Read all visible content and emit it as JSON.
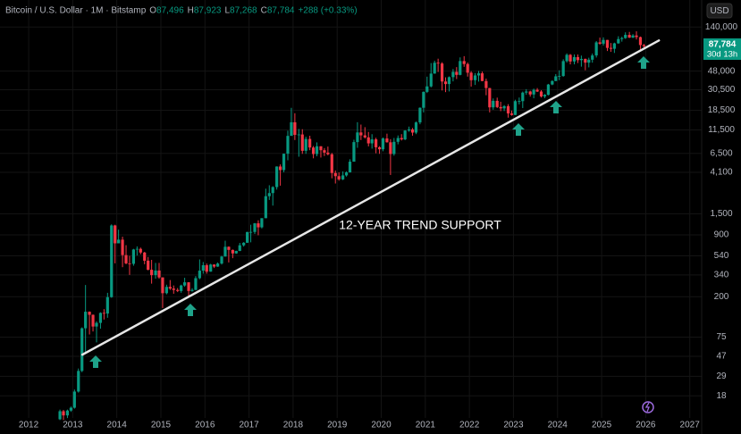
{
  "chart_data": {
    "type": "candlestick",
    "header": {
      "symbol": "Bitcoin / U.S. Dollar · 1M · Bitstamp",
      "ohlc": [
        {
          "key": "O",
          "value": "87,496"
        },
        {
          "key": "H",
          "value": "87,923"
        },
        {
          "key": "L",
          "value": "87,268"
        },
        {
          "key": "C",
          "value": "87,784"
        }
      ],
      "change": "+288 (+0.33%)"
    },
    "currency": "USD",
    "price_label": "87,784",
    "countdown": "30d 13h",
    "annotation": "12-YEAR TREND SUPPORT",
    "trendline": {
      "x": [
        2013.22,
        2026.3
      ],
      "y": [
        49,
        101000
      ],
      "color": "#e6e6e6"
    },
    "up_color": "#089981",
    "down_color": "#f23645",
    "log_scale": true,
    "grid": true,
    "xlim": [
      2011.35,
      2027.27
    ],
    "ylim": [
      12,
      270000
    ],
    "xticks": [
      2012,
      2013,
      2014,
      2015,
      2016,
      2017,
      2018,
      2019,
      2020,
      2021,
      2022,
      2023,
      2024,
      2025,
      2026,
      2027
    ],
    "yticks": [
      {
        "value": 140000,
        "label": "140,000"
      },
      {
        "value": 48000,
        "label": "48,000"
      },
      {
        "value": 30500,
        "label": "30,500"
      },
      {
        "value": 18500,
        "label": "18,500"
      },
      {
        "value": 11500,
        "label": "11,500"
      },
      {
        "value": 6500,
        "label": "6,500"
      },
      {
        "value": 4100,
        "label": "4,100"
      },
      {
        "value": 1500,
        "label": "1,500"
      },
      900,
      540,
      340,
      200,
      75,
      47,
      29,
      18
    ],
    "x": [
      2012.71,
      2012.79,
      2012.88,
      2012.96,
      2013.04,
      2013.13,
      2013.21,
      2013.29,
      2013.38,
      2013.46,
      2013.54,
      2013.63,
      2013.71,
      2013.79,
      2013.88,
      2013.96,
      2014.04,
      2014.13,
      2014.21,
      2014.29,
      2014.38,
      2014.46,
      2014.54,
      2014.63,
      2014.71,
      2014.79,
      2014.88,
      2014.96,
      2015.04,
      2015.13,
      2015.21,
      2015.29,
      2015.38,
      2015.46,
      2015.54,
      2015.63,
      2015.71,
      2015.79,
      2015.88,
      2015.96,
      2016.04,
      2016.13,
      2016.21,
      2016.29,
      2016.38,
      2016.46,
      2016.54,
      2016.63,
      2016.71,
      2016.79,
      2016.88,
      2016.96,
      2017.04,
      2017.13,
      2017.21,
      2017.29,
      2017.38,
      2017.46,
      2017.54,
      2017.63,
      2017.71,
      2017.79,
      2017.88,
      2017.96,
      2018.04,
      2018.13,
      2018.21,
      2018.29,
      2018.38,
      2018.46,
      2018.54,
      2018.63,
      2018.71,
      2018.79,
      2018.88,
      2018.96,
      2019.04,
      2019.13,
      2019.21,
      2019.29,
      2019.38,
      2019.46,
      2019.54,
      2019.63,
      2019.71,
      2019.79,
      2019.88,
      2019.96,
      2020.04,
      2020.13,
      2020.21,
      2020.29,
      2020.38,
      2020.46,
      2020.54,
      2020.63,
      2020.71,
      2020.79,
      2020.88,
      2020.96,
      2021.04,
      2021.13,
      2021.21,
      2021.29,
      2021.38,
      2021.46,
      2021.54,
      2021.63,
      2021.71,
      2021.79,
      2021.88,
      2021.96,
      2022.04,
      2022.13,
      2022.21,
      2022.29,
      2022.38,
      2022.46,
      2022.54,
      2022.63,
      2022.71,
      2022.79,
      2022.88,
      2022.96,
      2023.04,
      2023.13,
      2023.21,
      2023.29,
      2023.38,
      2023.46,
      2023.54,
      2023.63,
      2023.71,
      2023.79,
      2023.88,
      2023.96,
      2024.04,
      2024.13,
      2024.21,
      2024.29,
      2024.38,
      2024.46,
      2024.54,
      2024.63,
      2024.71,
      2024.79,
      2024.88,
      2024.96,
      2025.04,
      2025.13,
      2025.21,
      2025.29,
      2025.38,
      2025.46,
      2025.54,
      2025.63,
      2025.71,
      2025.79,
      2025.88,
      2025.96
    ],
    "open": [
      10.2,
      12.4,
      11.2,
      12.6,
      13.5,
      20,
      33,
      93,
      139,
      129,
      97,
      106,
      135,
      133,
      198,
      1130,
      732,
      800,
      550,
      450,
      445,
      630,
      640,
      585,
      480,
      385,
      338,
      378,
      320,
      218,
      254,
      244,
      236,
      230,
      263,
      284,
      230,
      236,
      314,
      377,
      430,
      368,
      437,
      416,
      448,
      531,
      673,
      624,
      573,
      609,
      698,
      742,
      963,
      965,
      1190,
      1080,
      1348,
      2300,
      2480,
      2870,
      4730,
      4340,
      6450,
      9950,
      13850,
      10200,
      10300,
      6930,
      9240,
      7500,
      6400,
      7730,
      7030,
      6630,
      6370,
      4040,
      3740,
      3460,
      3810,
      4100,
      5320,
      8560,
      10820,
      10080,
      9600,
      8300,
      9150,
      7550,
      7190,
      9350,
      8520,
      6410,
      8620,
      9450,
      9140,
      11330,
      11650,
      10780,
      13800,
      19700,
      28990,
      33100,
      45200,
      58800,
      57700,
      37300,
      35040,
      41460,
      47100,
      43800,
      61300,
      57000,
      46200,
      38500,
      43200,
      45500,
      37700,
      31800,
      19900,
      23300,
      20050,
      19420,
      20490,
      17170,
      16540,
      23140,
      23150,
      28480,
      29250,
      27220,
      30470,
      29230,
      25940,
      26970,
      34660,
      37720,
      42280,
      42580,
      61200,
      71300,
      60670,
      67500,
      62700,
      64600,
      58970,
      63330,
      70220,
      96450,
      93430,
      102400,
      84350,
      82550,
      94200,
      104600,
      107100,
      115750,
      108250,
      114050,
      109600,
      90400
    ],
    "high": [
      12.9,
      12.8,
      12.9,
      13.9,
      21,
      35,
      95,
      266,
      140,
      130,
      110,
      137,
      148,
      220,
      1160,
      1150,
      1020,
      860,
      700,
      540,
      640,
      680,
      660,
      595,
      525,
      490,
      455,
      455,
      320,
      268,
      300,
      263,
      247,
      268,
      317,
      285,
      246,
      330,
      495,
      465,
      448,
      445,
      440,
      460,
      540,
      780,
      680,
      630,
      612,
      740,
      754,
      970,
      1150,
      1200,
      1280,
      1350,
      2760,
      3000,
      2930,
      4750,
      4980,
      6470,
      11300,
      19670,
      17250,
      11780,
      11700,
      9760,
      9990,
      7780,
      8500,
      7760,
      7400,
      7680,
      6580,
      4300,
      4100,
      4200,
      4200,
      5640,
      9070,
      13880,
      13100,
      12300,
      10950,
      10370,
      9510,
      7750,
      9570,
      10500,
      9190,
      9460,
      10060,
      10380,
      11440,
      12470,
      12060,
      14100,
      19900,
      29300,
      41950,
      58350,
      61800,
      64900,
      59600,
      41300,
      42200,
      50500,
      52900,
      67000,
      69000,
      59100,
      47990,
      45800,
      48200,
      47500,
      40000,
      31950,
      24700,
      25200,
      22800,
      21000,
      21500,
      18400,
      23950,
      25250,
      29190,
      30970,
      29800,
      31400,
      31800,
      30200,
      27470,
      35200,
      38400,
      44700,
      48970,
      64000,
      73800,
      72700,
      71950,
      71900,
      70000,
      65100,
      66500,
      73600,
      99600,
      108300,
      109000,
      102500,
      95000,
      95800,
      111900,
      110600,
      123200,
      124400,
      117900,
      126200,
      111000,
      93000
    ],
    "low": [
      10.0,
      10.0,
      10.5,
      12.2,
      13.2,
      19.5,
      32,
      50,
      80,
      86,
      66,
      92,
      115,
      120,
      195,
      450,
      740,
      410,
      440,
      340,
      425,
      545,
      560,
      440,
      380,
      275,
      310,
      310,
      152,
      212,
      236,
      215,
      224,
      220,
      255,
      199,
      226,
      235,
      306,
      350,
      350,
      367,
      402,
      413,
      437,
      530,
      460,
      510,
      568,
      605,
      676,
      740,
      750,
      920,
      890,
      1050,
      1350,
      2100,
      1830,
      2700,
      2970,
      4110,
      5500,
      10800,
      9000,
      6000,
      6430,
      6430,
      7030,
      5770,
      6060,
      5880,
      6100,
      6200,
      3550,
      3130,
      3350,
      3400,
      3700,
      4090,
      5320,
      7450,
      9000,
      9330,
      7710,
      7300,
      6520,
      6430,
      6850,
      8450,
      3850,
      6150,
      8110,
      8900,
      8970,
      11000,
      10000,
      10380,
      13200,
      17600,
      28200,
      32300,
      45000,
      47000,
      30000,
      28800,
      29300,
      37400,
      39600,
      43300,
      53300,
      42000,
      32950,
      34300,
      37200,
      37600,
      26700,
      17600,
      18800,
      19560,
      18150,
      18200,
      15500,
      16250,
      16500,
      21400,
      19550,
      27000,
      25850,
      24800,
      28900,
      25300,
      24900,
      26600,
      34100,
      37600,
      38500,
      41900,
      59100,
      56500,
      56550,
      58400,
      53500,
      49000,
      52550,
      58900,
      66800,
      91200,
      89200,
      78200,
      76600,
      74600,
      93400,
      98200,
      105100,
      107300,
      107200,
      103500,
      80600,
      84000
    ],
    "close": [
      12.4,
      11.2,
      12.6,
      13.5,
      20,
      33,
      93,
      139,
      129,
      97,
      106,
      135,
      133,
      198,
      1130,
      732,
      800,
      550,
      450,
      445,
      630,
      640,
      585,
      480,
      385,
      338,
      378,
      320,
      218,
      254,
      244,
      236,
      230,
      263,
      284,
      230,
      236,
      314,
      377,
      430,
      368,
      437,
      416,
      448,
      531,
      673,
      624,
      573,
      609,
      698,
      742,
      963,
      965,
      1190,
      1080,
      1348,
      2300,
      2480,
      2870,
      4730,
      4340,
      6450,
      9950,
      13850,
      10200,
      10300,
      6930,
      9240,
      7500,
      6400,
      7730,
      7030,
      6630,
      6370,
      4040,
      3740,
      3460,
      3810,
      4100,
      5320,
      8560,
      10820,
      10080,
      9600,
      8300,
      9150,
      7550,
      7190,
      9350,
      8520,
      6410,
      8620,
      9450,
      9140,
      11330,
      11650,
      10780,
      13800,
      19700,
      28990,
      33100,
      45200,
      58800,
      57700,
      37300,
      35040,
      41460,
      47100,
      43800,
      61300,
      57000,
      46200,
      38500,
      43200,
      45500,
      37700,
      31800,
      19900,
      23300,
      20050,
      19420,
      20490,
      17170,
      16540,
      23140,
      23150,
      28480,
      29250,
      27220,
      30470,
      29230,
      25940,
      26970,
      34660,
      37720,
      42280,
      42580,
      61200,
      71300,
      60670,
      67500,
      62700,
      64600,
      58970,
      63330,
      70220,
      96450,
      93430,
      102400,
      84350,
      82550,
      94200,
      104600,
      107100,
      115750,
      108250,
      114050,
      109600,
      90400,
      87784
    ]
  }
}
